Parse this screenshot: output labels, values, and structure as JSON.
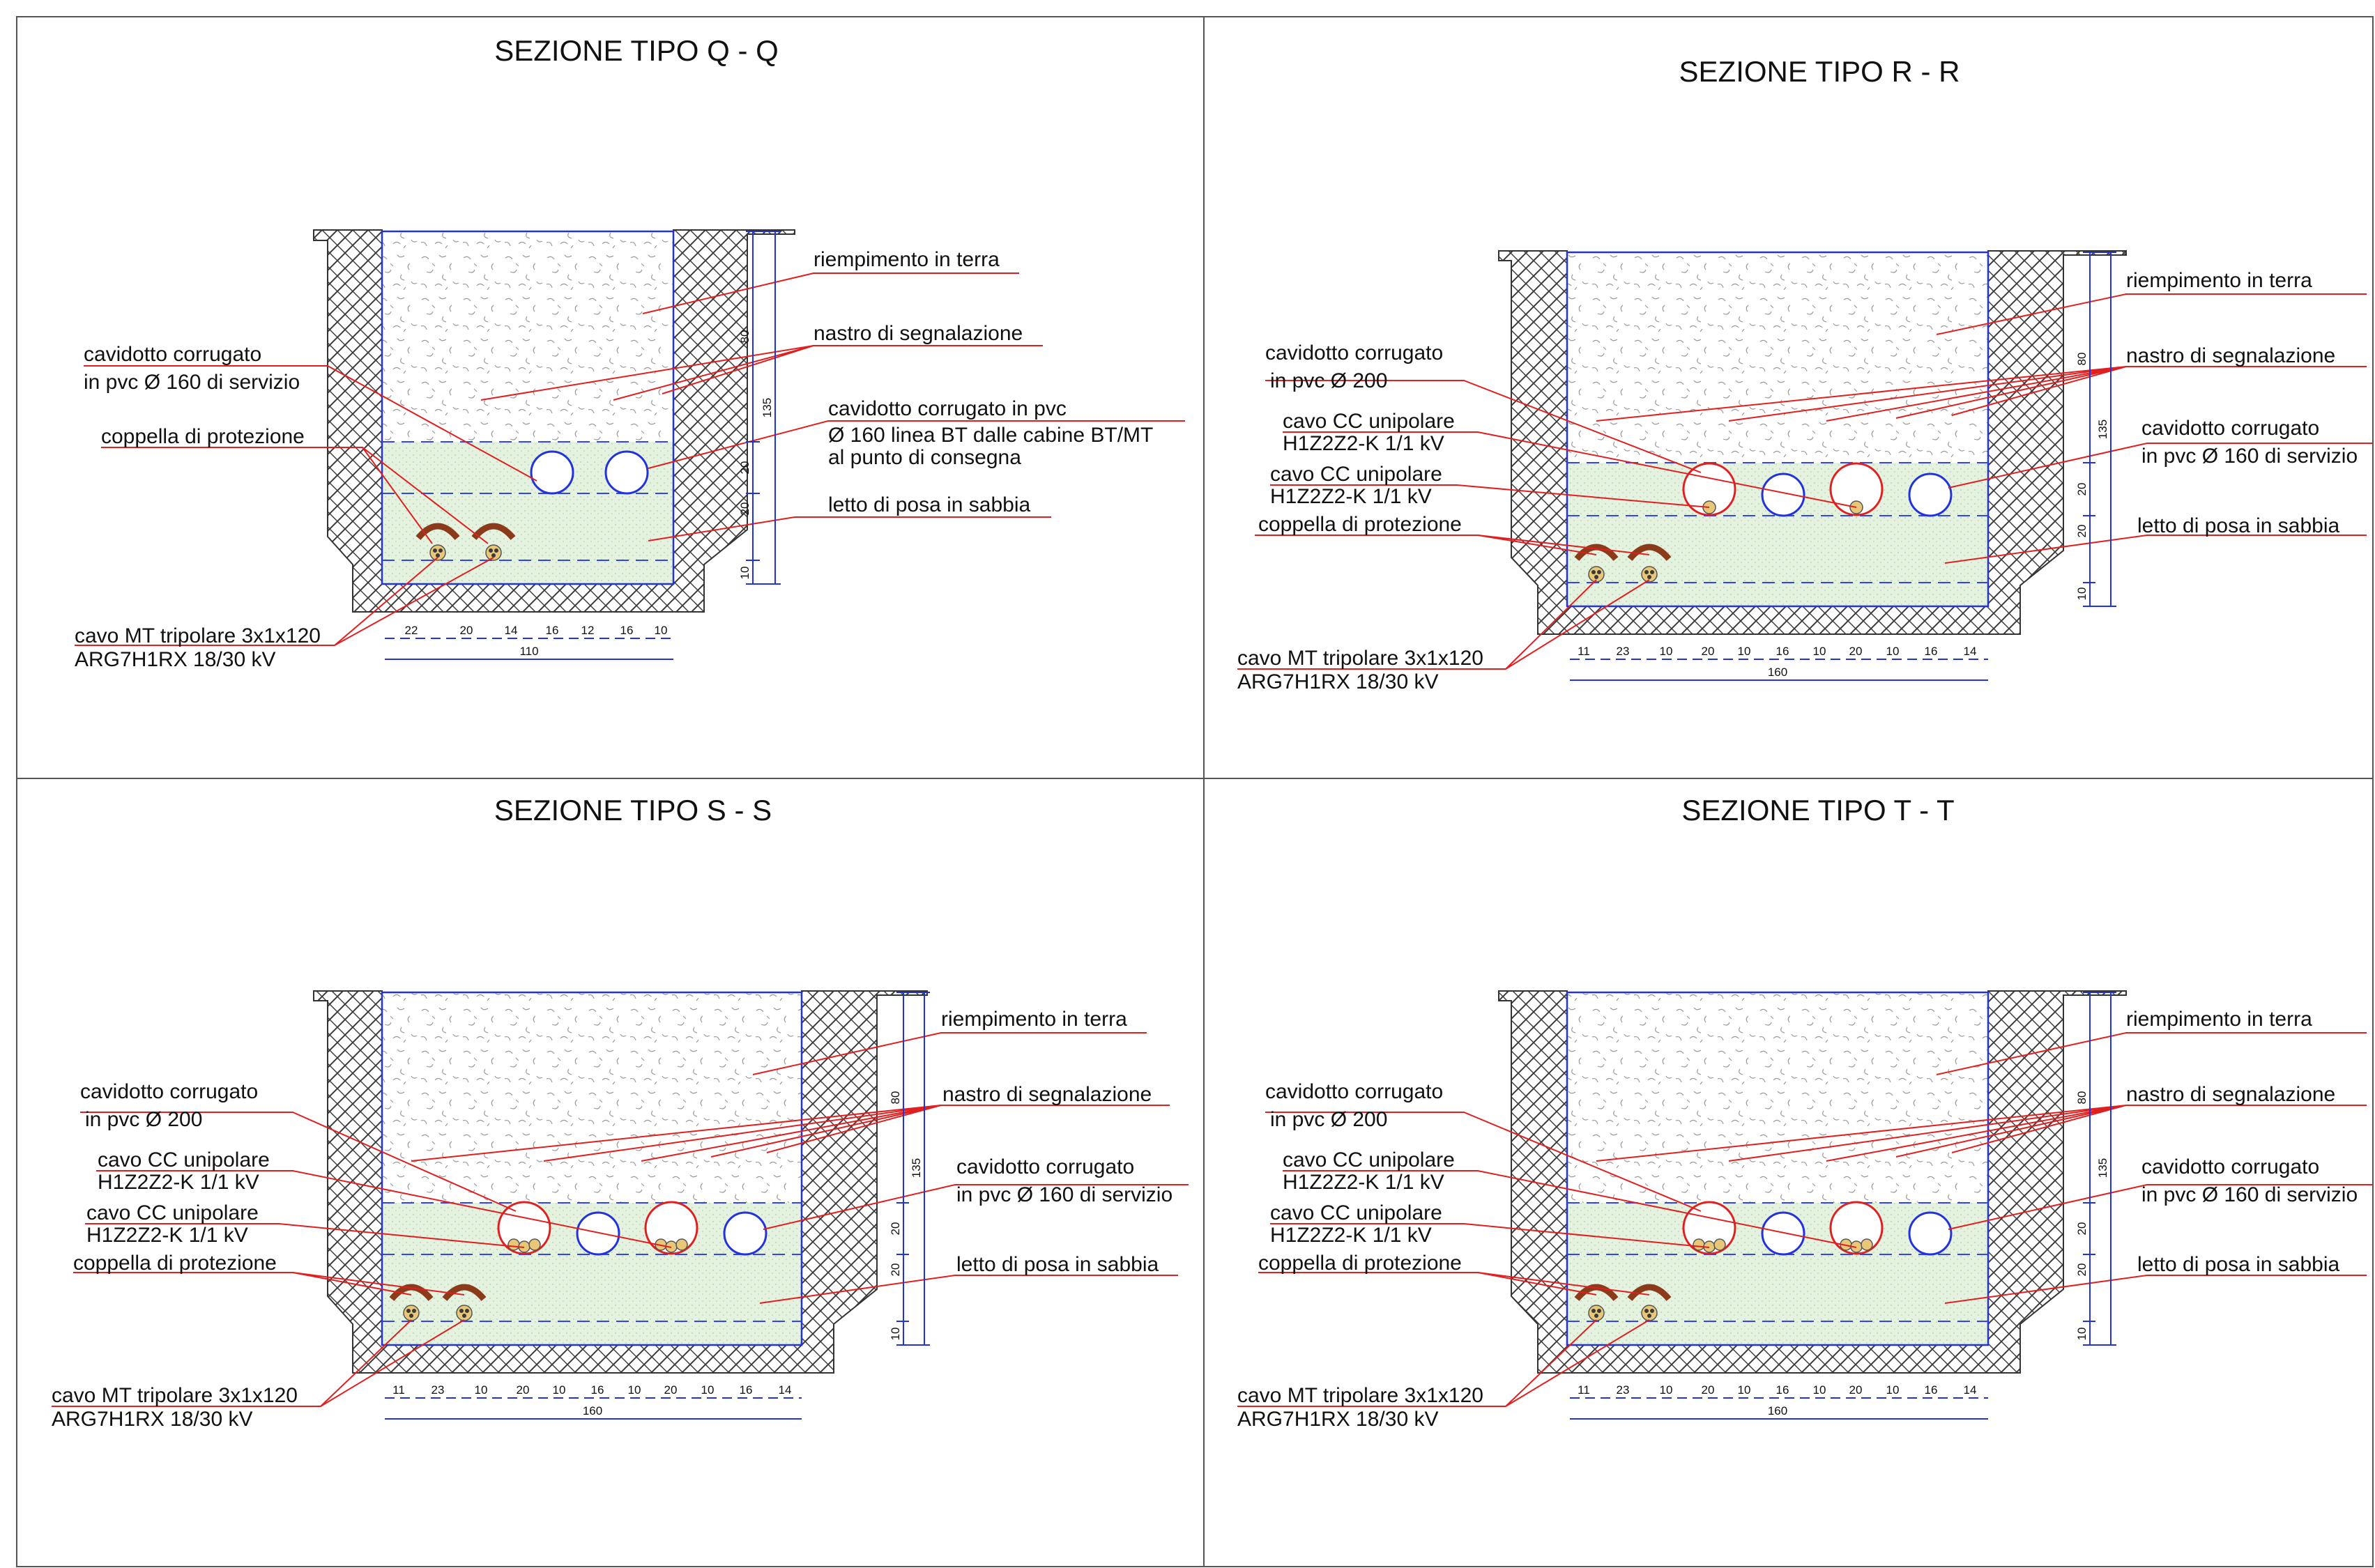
{
  "colors": {
    "leader": "#e02020",
    "structure": "#2233dd",
    "frame": "#333333",
    "copper": "#8b3a1a",
    "sand": "#dff0da"
  },
  "sections": [
    {
      "title": "SEZIONE TIPO Q - Q",
      "labels": {
        "riempimento": "riempimento in terra",
        "nastro": "nastro di segnalazione",
        "cav200_1": "cavidotto corrugato",
        "cav200_2": "in pvc Ø 160 di servizio",
        "cavA_1": "cavidotto corrugato in pvc",
        "cavA_2": "Ø 160 linea BT dalle cabine BT/MT",
        "cavA_3": "al punto di consegna",
        "letto": "letto di posa in sabbia",
        "coppella": "coppella di protezione",
        "mt_1": "cavo MT tripolare 3x1x120",
        "mt_2": "ARG7H1RX 18/30 kV"
      },
      "vdims": [
        "80",
        "20",
        "20",
        "10"
      ],
      "depth_total": "135",
      "hdims": [
        "22",
        "20",
        "14",
        "16",
        "12",
        "16",
        "10"
      ],
      "width_total": "110"
    },
    {
      "title": "SEZIONE TIPO R - R",
      "labels": {
        "riempimento": "riempimento in terra",
        "nastro": "nastro di segnalazione",
        "cav200_1": "cavidotto corrugato",
        "cav200_2": "in pvc Ø 200",
        "cc1_1": "cavo CC unipolare",
        "cc1_2": "H1Z2Z2-K 1/1 kV",
        "cc2_1": "cavo CC unipolare",
        "cc2_2": "H1Z2Z2-K 1/1 kV",
        "coppella": "coppella di protezione",
        "cav160_1": "cavidotto corrugato",
        "cav160_2": "in pvc Ø 160 di servizio",
        "letto": "letto di posa in sabbia",
        "mt_1": "cavo MT tripolare 3x1x120",
        "mt_2": "ARG7H1RX 18/30 kV"
      },
      "vdims": [
        "80",
        "20",
        "20",
        "10"
      ],
      "depth_total": "135",
      "hdims": [
        "11",
        "23",
        "10",
        "20",
        "10",
        "16",
        "10",
        "20",
        "10",
        "16",
        "14"
      ],
      "width_total": "160"
    },
    {
      "title": "SEZIONE TIPO S - S",
      "labels": {
        "riempimento": "riempimento in terra",
        "nastro": "nastro di segnalazione",
        "cav200_1": "cavidotto corrugato",
        "cav200_2": "in pvc Ø 200",
        "cc1_1": "cavo CC unipolare",
        "cc1_2": "H1Z2Z2-K 1/1 kV",
        "cc2_1": "cavo CC unipolare",
        "cc2_2": "H1Z2Z2-K 1/1 kV",
        "coppella": "coppella di protezione",
        "cav160_1": "cavidotto corrugato",
        "cav160_2": "in pvc Ø 160 di servizio",
        "letto": "letto di posa in sabbia",
        "mt_1": "cavo MT tripolare 3x1x120",
        "mt_2": "ARG7H1RX 18/30 kV"
      },
      "vdims": [
        "80",
        "20",
        "20",
        "10"
      ],
      "depth_total": "135",
      "hdims": [
        "11",
        "23",
        "10",
        "20",
        "10",
        "16",
        "10",
        "20",
        "10",
        "16",
        "14"
      ],
      "width_total": "160"
    },
    {
      "title": "SEZIONE TIPO T - T",
      "labels": {
        "riempimento": "riempimento in terra",
        "nastro": "nastro di segnalazione",
        "cav200_1": "cavidotto corrugato",
        "cav200_2": "in pvc Ø 200",
        "cc1_1": "cavo CC unipolare",
        "cc1_2": "H1Z2Z2-K 1/1 kV",
        "cc2_1": "cavo CC unipolare",
        "cc2_2": "H1Z2Z2-K 1/1 kV",
        "coppella": "coppella di protezione",
        "cav160_1": "cavidotto corrugato",
        "cav160_2": "in pvc Ø 160 di servizio",
        "letto": "letto di posa in sabbia",
        "mt_1": "cavo MT tripolare 3x1x120",
        "mt_2": "ARG7H1RX 18/30 kV"
      },
      "vdims": [
        "80",
        "20",
        "20",
        "10"
      ],
      "depth_total": "135",
      "hdims": [
        "11",
        "23",
        "10",
        "20",
        "10",
        "16",
        "10",
        "20",
        "10",
        "16",
        "14"
      ],
      "width_total": "160"
    }
  ]
}
